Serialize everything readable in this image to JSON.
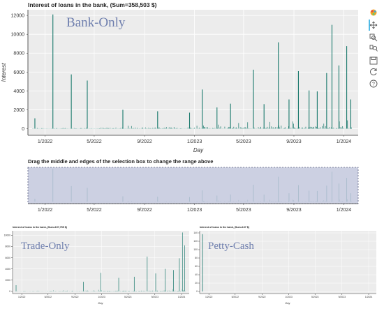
{
  "colors": {
    "plot_bg": "#ececec",
    "grid": "#ffffff",
    "bar": "#17786b",
    "selection_fill": "#c3c8dd",
    "selection_stroke": "#5a5f80",
    "overlay_text": "#6f7fae",
    "toolbar_active": "#26aae1"
  },
  "toolbar": {
    "icons": [
      "bokeh-logo-icon",
      "pan-icon",
      "box-zoom-icon",
      "wheel-zoom-icon",
      "save-icon",
      "reset-icon",
      "help-icon"
    ]
  },
  "range_tool": {
    "label": "Drag the middle and edges of the selection box to change the range above"
  },
  "chart_data": [
    {
      "type": "bar",
      "title": "Interest of loans in the bank, (Sum=358,503 $)",
      "overlay_label": "Bank-Only",
      "xlabel": "Day",
      "ylabel": "Interest",
      "x_ticks": [
        "1/2022",
        "5/2022",
        "9/2022",
        "1/2023",
        "5/2023",
        "9/2023",
        "1/2024"
      ],
      "y_ticks": [
        "0",
        "2000",
        "4000",
        "6000",
        "8000",
        "10000",
        "12000"
      ],
      "xlim": [
        "2021-11-20",
        "2024-02-05"
      ],
      "ylim": [
        -700,
        12600
      ],
      "grid": true,
      "peaks": [
        {
          "x": "2021-12-07",
          "y": 1100
        },
        {
          "x": "2022-01-20",
          "y": 12100
        },
        {
          "x": "2022-03-06",
          "y": 5750
        },
        {
          "x": "2022-04-14",
          "y": 5100
        },
        {
          "x": "2022-07-10",
          "y": 2000
        },
        {
          "x": "2022-10-03",
          "y": 1850
        },
        {
          "x": "2022-12-20",
          "y": 1700
        },
        {
          "x": "2023-01-20",
          "y": 4150
        },
        {
          "x": "2023-02-25",
          "y": 2250
        },
        {
          "x": "2023-03-30",
          "y": 2650
        },
        {
          "x": "2023-05-25",
          "y": 6250
        },
        {
          "x": "2023-06-20",
          "y": 2600
        },
        {
          "x": "2023-07-25",
          "y": 9150
        },
        {
          "x": "2023-08-20",
          "y": 3100
        },
        {
          "x": "2023-09-12",
          "y": 6100
        },
        {
          "x": "2023-10-08",
          "y": 4050
        },
        {
          "x": "2023-10-28",
          "y": 3950
        },
        {
          "x": "2023-11-20",
          "y": 5900
        },
        {
          "x": "2023-12-03",
          "y": 11000
        },
        {
          "x": "2023-12-20",
          "y": 6700
        },
        {
          "x": "2024-01-08",
          "y": 8750
        },
        {
          "x": "2024-01-18",
          "y": 3100
        }
      ]
    },
    {
      "type": "bar",
      "title": "Interest of loans in the bank, (Sum=197,755 $)",
      "overlay_label": "Trade-Only",
      "xlabel": "Day",
      "ylabel": "",
      "x_ticks": [
        "1/2022",
        "5/2022",
        "9/2022",
        "1/2023",
        "5/2023",
        "9/2023",
        "1/2024"
      ],
      "y_ticks": [
        "0",
        "2000",
        "4000",
        "6000",
        "8000",
        "10000"
      ],
      "xlim": [
        "2021-11-20",
        "2024-02-05"
      ],
      "ylim": [
        -400,
        10800
      ],
      "grid": true,
      "peaks": [
        {
          "x": "2021-12-06",
          "y": 1100
        },
        {
          "x": "2022-10-10",
          "y": 1700
        },
        {
          "x": "2022-12-28",
          "y": 3300
        },
        {
          "x": "2023-03-20",
          "y": 2400
        },
        {
          "x": "2023-05-30",
          "y": 2600
        },
        {
          "x": "2023-07-28",
          "y": 6200
        },
        {
          "x": "2023-09-05",
          "y": 3200
        },
        {
          "x": "2023-10-18",
          "y": 4000
        },
        {
          "x": "2023-11-25",
          "y": 3800
        },
        {
          "x": "2023-12-22",
          "y": 5900
        },
        {
          "x": "2024-01-05",
          "y": 10500
        },
        {
          "x": "2024-01-15",
          "y": 8200
        }
      ]
    },
    {
      "type": "bar",
      "title": "Interest of loans in the bank, (Sum=137 $)",
      "overlay_label": "Petty-Cash",
      "xlabel": "Day",
      "ylabel": "",
      "x_ticks": [
        "1/2022",
        "5/2022",
        "9/2022",
        "1/2023",
        "5/2023",
        "9/2023",
        "1/2024"
      ],
      "y_ticks": [
        "0",
        "20",
        "40",
        "60",
        "80",
        "100",
        "120",
        "140"
      ],
      "xlim": [
        "2021-11-20",
        "2024-02-05"
      ],
      "ylim": [
        -5,
        145
      ],
      "grid": true,
      "peaks": [
        {
          "x": "2021-12-03",
          "y": 137
        }
      ]
    }
  ]
}
